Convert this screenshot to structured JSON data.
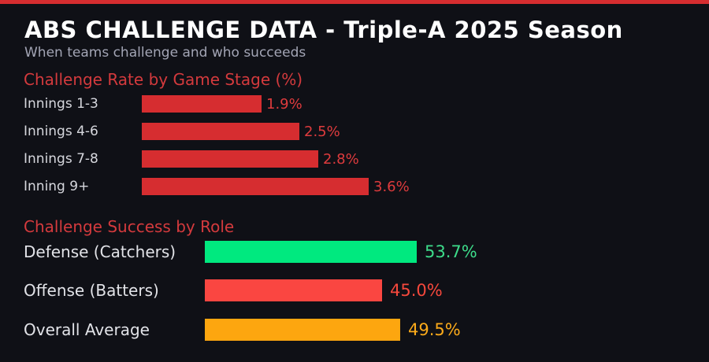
{
  "header": {
    "title": "ABS CHALLENGE DATA - Triple-A 2025 Season",
    "subtitle": "When teams challenge and who succeeds"
  },
  "theme": {
    "background": "#0f1016",
    "top_strip": "#d62d30",
    "title_color": "#ffffff",
    "subtitle_color": "#a3a5b5",
    "heading_color": "#d43a3d",
    "label_color_stage": "#d6d7dd",
    "label_color_role": "#e2e3e8"
  },
  "chart_data": [
    {
      "type": "bar",
      "orientation": "horizontal",
      "title": "Challenge Rate by Game Stage (%)",
      "categories": [
        "Innings 1-3",
        "Innings 4-6",
        "Innings 7-8",
        "Inning 9+"
      ],
      "values": [
        1.9,
        2.5,
        2.8,
        3.6
      ],
      "value_labels": [
        "1.9%",
        "2.5%",
        "2.8%",
        "3.6%"
      ],
      "bar_colors": [
        "#d62d30",
        "#d62d30",
        "#d62d30",
        "#d62d30"
      ],
      "value_colors": [
        "#de3b3d",
        "#de3b3d",
        "#de3b3d",
        "#de3b3d"
      ],
      "xlim": [
        0,
        4.5
      ],
      "grid": false,
      "legend": false
    },
    {
      "type": "bar",
      "orientation": "horizontal",
      "title": "Challenge Success by Role",
      "categories": [
        "Defense (Catchers)",
        "Offense (Batters)",
        "Overall Average"
      ],
      "values": [
        53.7,
        45.0,
        49.5
      ],
      "value_labels": [
        "53.7%",
        "45.0%",
        "49.5%"
      ],
      "bar_colors": [
        "#00e97f",
        "#fa4641",
        "#fda60f"
      ],
      "value_colors": [
        "#3ddc8a",
        "#f6483c",
        "#fbaa1a"
      ],
      "xlim": [
        0,
        60
      ],
      "grid": false,
      "legend": false
    }
  ]
}
